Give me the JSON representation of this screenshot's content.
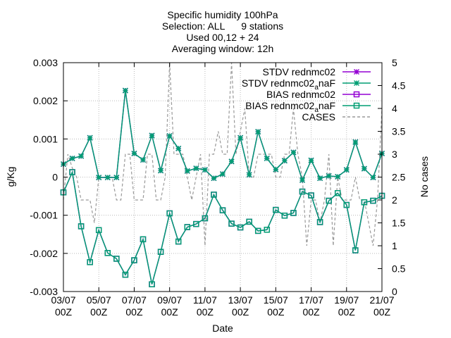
{
  "chart_data": {
    "type": "line",
    "title_lines": [
      "Specific humidity 100hPa",
      "Selection: ALL      9 stations",
      "Used 00,12 + 24",
      "Averaging window: 12h"
    ],
    "xlabel": "Date",
    "ylabel": "g/Kg",
    "y2label": "No cases",
    "xlim": [
      0,
      72
    ],
    "ylim": [
      -0.003,
      0.003
    ],
    "y2lim": [
      0,
      5
    ],
    "grid": true,
    "legend_position": "top-right",
    "xticks": [
      {
        "x": 0,
        "l1": "03/07",
        "l2": "00Z"
      },
      {
        "x": 8,
        "l1": "05/07",
        "l2": "00Z"
      },
      {
        "x": 16,
        "l1": "07/07",
        "l2": "00Z"
      },
      {
        "x": 24,
        "l1": "09/07",
        "l2": "00Z"
      },
      {
        "x": 32,
        "l1": "11/07",
        "l2": "00Z"
      },
      {
        "x": 40,
        "l1": "13/07",
        "l2": "00Z"
      },
      {
        "x": 48,
        "l1": "15/07",
        "l2": "00Z"
      },
      {
        "x": 56,
        "l1": "17/07",
        "l2": "00Z"
      },
      {
        "x": 64,
        "l1": "19/07",
        "l2": "00Z"
      },
      {
        "x": 72,
        "l1": "21/07",
        "l2": "00Z"
      }
    ],
    "yticks": [
      {
        "v": 0.003,
        "label": "0.003"
      },
      {
        "v": 0.002,
        "label": "0.002"
      },
      {
        "v": 0.001,
        "label": "0.001"
      },
      {
        "v": 0,
        "label": "0"
      },
      {
        "v": -0.001,
        "label": "-0.001"
      },
      {
        "v": -0.002,
        "label": "-0.002"
      },
      {
        "v": -0.003,
        "label": "-0.003"
      }
    ],
    "y2ticks": [
      {
        "v": 0,
        "label": "0"
      },
      {
        "v": 0.5,
        "label": "0.5"
      },
      {
        "v": 1,
        "label": "1"
      },
      {
        "v": 1.5,
        "label": "1.5"
      },
      {
        "v": 2,
        "label": "2"
      },
      {
        "v": 2.5,
        "label": "2.5"
      },
      {
        "v": 3,
        "label": "3"
      },
      {
        "v": 3.5,
        "label": "3.5"
      },
      {
        "v": 4,
        "label": "4"
      },
      {
        "v": 4.5,
        "label": "4.5"
      },
      {
        "v": 5,
        "label": "5"
      }
    ],
    "legend": [
      {
        "label": "STDV rednmc02",
        "color": "#9400d3",
        "marker": "star",
        "dash": "none"
      },
      {
        "label": "STDV rednmc02",
        "sub": "a",
        "label_end": "naF",
        "color": "#009e73",
        "marker": "star",
        "dash": "none"
      },
      {
        "label": "BIAS rednmc02",
        "color": "#9400d3",
        "marker": "square",
        "dash": "none"
      },
      {
        "label": "BIAS rednmc02",
        "sub": "a",
        "label_end": "naF",
        "color": "#009e73",
        "marker": "square",
        "dash": "none"
      },
      {
        "label": "CASES",
        "color": "#999999",
        "marker": "none",
        "dash": "4,3"
      }
    ],
    "x": [
      0,
      2,
      4,
      6,
      8,
      10,
      12,
      14,
      16,
      18,
      20,
      22,
      24,
      26,
      28,
      30,
      32,
      34,
      36,
      38,
      40,
      42,
      44,
      46,
      48,
      50,
      52,
      54,
      56,
      58,
      60,
      62,
      64,
      66,
      68,
      70,
      72
    ],
    "series": [
      {
        "name": "STDV rednmc02",
        "axis": "y1",
        "color": "#9400d3",
        "marker": "star",
        "values": [
          0.00034,
          0.00049,
          0.00055,
          0.00103,
          -1e-05,
          -1e-05,
          -1e-05,
          0.00227,
          0.00062,
          0.00045,
          0.00109,
          0.00017,
          0.00108,
          0.00075,
          0.00016,
          0.00023,
          0.00019,
          -3e-05,
          8e-05,
          0.00041,
          0.00103,
          6e-05,
          0.00119,
          0.00049,
          0.0002,
          0.00043,
          0.00065,
          -8e-05,
          0.00044,
          -3e-05,
          3e-05,
          1e-05,
          0.00019,
          0.00092,
          0.00022,
          -1e-05,
          0.00062
        ]
      },
      {
        "name": "STDV rednmc02aanaF",
        "axis": "y1",
        "color": "#009e73",
        "marker": "star",
        "values": [
          0.00034,
          0.00049,
          0.00055,
          0.00103,
          -1e-05,
          -1e-05,
          -1e-05,
          0.00227,
          0.00062,
          0.00045,
          0.00109,
          0.00017,
          0.00108,
          0.00075,
          0.00016,
          0.00023,
          0.00019,
          -3e-05,
          8e-05,
          0.00041,
          0.00103,
          6e-05,
          0.00119,
          0.00049,
          0.0002,
          0.00043,
          0.00065,
          -8e-05,
          0.00044,
          -3e-05,
          3e-05,
          1e-05,
          0.00019,
          0.00092,
          0.00022,
          -1e-05,
          0.00062
        ]
      },
      {
        "name": "BIAS rednmc02",
        "axis": "y1",
        "color": "#9400d3",
        "marker": "square",
        "values": [
          -0.0004,
          0.00013,
          -0.00129,
          -0.00223,
          -0.00139,
          -0.00199,
          -0.00214,
          -0.00256,
          -0.00218,
          -0.00163,
          -0.00281,
          -0.00196,
          -0.00095,
          -0.00169,
          -0.00131,
          -0.00123,
          -0.00108,
          -0.00046,
          -0.00087,
          -0.00122,
          -0.00132,
          -0.00117,
          -0.00141,
          -0.00138,
          -0.00086,
          -0.00101,
          -0.00094,
          -0.00038,
          -0.00048,
          -0.00118,
          -0.00062,
          -0.00042,
          -0.00073,
          -0.00192,
          -0.00066,
          -0.00062,
          -0.00049
        ]
      },
      {
        "name": "BIAS rednmc02aanaF",
        "axis": "y1",
        "color": "#009e73",
        "marker": "square",
        "values": [
          -0.0004,
          0.00013,
          -0.00129,
          -0.00223,
          -0.00139,
          -0.00199,
          -0.00214,
          -0.00256,
          -0.00218,
          -0.00163,
          -0.00281,
          -0.00196,
          -0.00095,
          -0.00169,
          -0.00131,
          -0.00123,
          -0.00108,
          -0.00046,
          -0.00087,
          -0.00122,
          -0.00132,
          -0.00117,
          -0.00141,
          -0.00138,
          -0.00086,
          -0.00101,
          -0.00094,
          -0.00038,
          -0.00048,
          -0.00118,
          -0.00062,
          -0.00042,
          -0.00073,
          -0.00192,
          -0.00066,
          -0.00062,
          -0.00049
        ]
      },
      {
        "name": "CASES",
        "axis": "y2",
        "color": "#999999",
        "marker": "none",
        "x": [
          0,
          1,
          2,
          3,
          4,
          5,
          6,
          7,
          8,
          9,
          10,
          11,
          12,
          13,
          14,
          15,
          16,
          17,
          18,
          19,
          20,
          21,
          22,
          23,
          24,
          25,
          26,
          27,
          28,
          29,
          30,
          31,
          32,
          33,
          34,
          35,
          36,
          37,
          38,
          39,
          40,
          41,
          42,
          43,
          44,
          45,
          46,
          47,
          48,
          49,
          50,
          51,
          52,
          53,
          54,
          55,
          56,
          57,
          58,
          59,
          60,
          61,
          62,
          63,
          64,
          65,
          66,
          67,
          68,
          69,
          70,
          71,
          72
        ],
        "values": [
          2,
          3,
          2.7,
          2.5,
          2,
          2,
          2,
          1.5,
          2.5,
          2.5,
          2.5,
          2.5,
          2,
          2,
          3,
          3,
          2,
          2,
          2,
          3,
          3,
          2,
          2,
          2.5,
          5,
          3,
          3,
          3,
          2.5,
          2,
          2.5,
          3,
          1,
          3,
          3,
          3.5,
          3,
          3,
          5,
          3,
          3.5,
          4,
          2.5,
          2.5,
          3,
          3,
          3,
          3,
          2.5,
          2.5,
          3,
          3,
          4,
          3,
          2.5,
          1,
          2,
          2,
          1.5,
          2,
          3,
          1,
          2.5,
          2,
          2,
          2,
          2.5,
          2,
          2,
          1.5,
          1,
          2,
          4
        ]
      }
    ]
  }
}
